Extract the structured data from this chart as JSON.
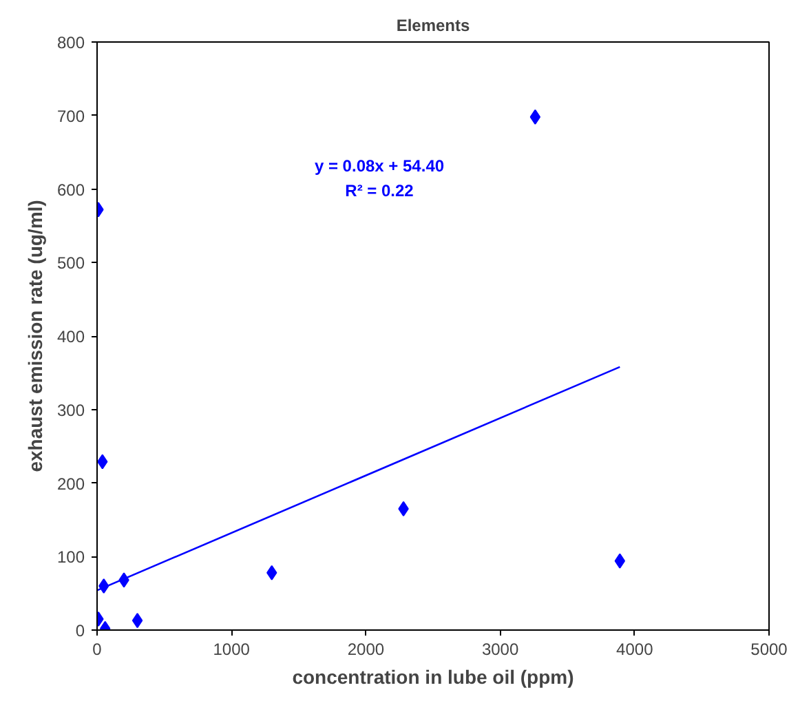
{
  "chart_data": {
    "type": "scatter",
    "title": "Elements",
    "xlabel": "concentration in lube oil (ppm)",
    "ylabel": "exhaust emission rate (ug/ml)",
    "xlim": [
      0,
      5000
    ],
    "ylim": [
      0,
      800
    ],
    "xticks": [
      0,
      1000,
      2000,
      3000,
      4000,
      5000
    ],
    "yticks": [
      0,
      100,
      200,
      300,
      400,
      500,
      600,
      700,
      800
    ],
    "marker": "diamond",
    "series": [
      {
        "color": "#0000ff",
        "x": [
          3260,
          10,
          40,
          50,
          200,
          300,
          1300,
          2280,
          3890,
          10,
          60
        ],
        "values": [
          698,
          572,
          229,
          60,
          68,
          13,
          78,
          165,
          94,
          15,
          2
        ]
      },
      {
        "type": "line",
        "color": "#0000ff",
        "marker": "none",
        "x": [
          0,
          3890
        ],
        "values": [
          54,
          358
        ]
      }
    ],
    "annotations": [
      "y = 0.08x + 54.40",
      "R² = 0.22"
    ]
  }
}
